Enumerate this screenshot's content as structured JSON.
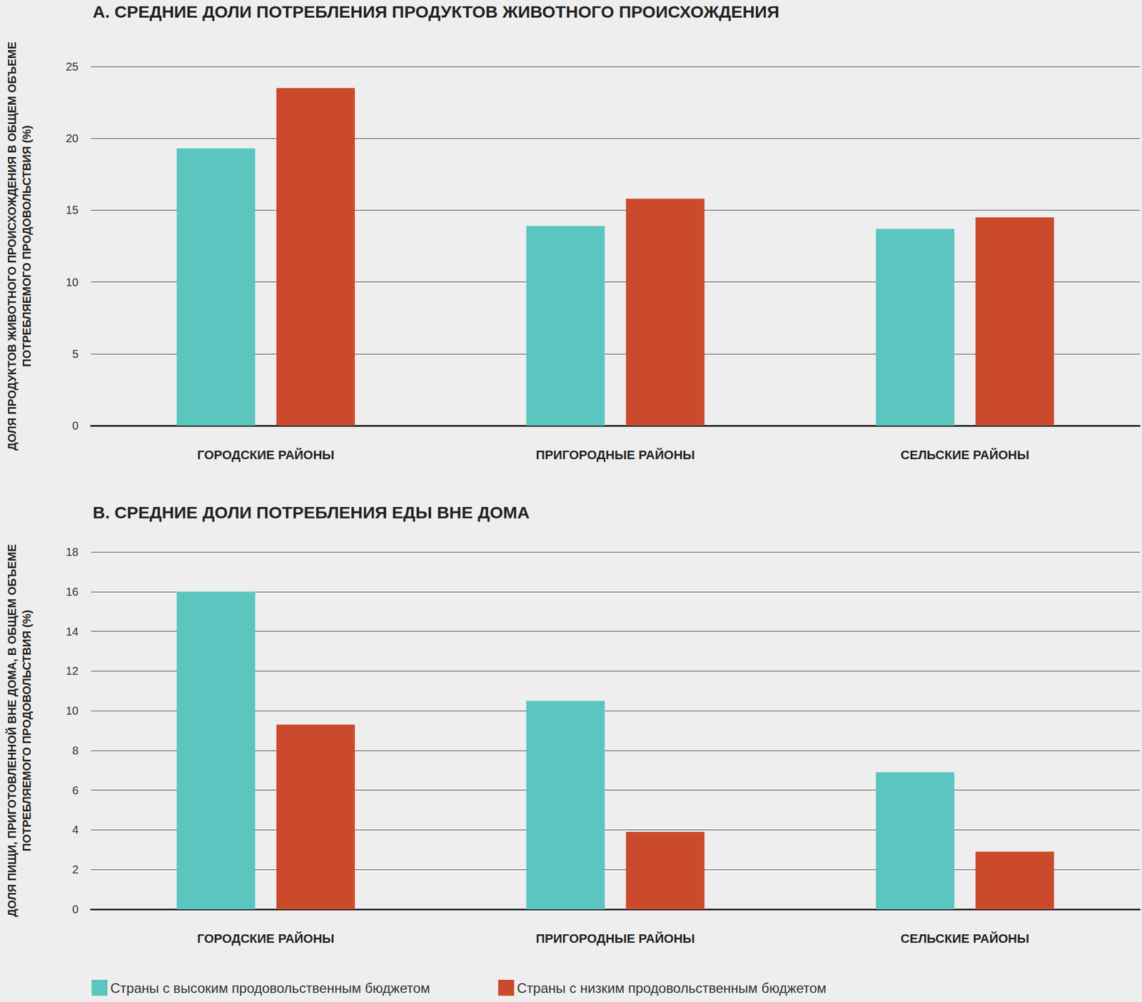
{
  "chart_data": [
    {
      "type": "bar",
      "title": "А. СРЕДНИЕ ДОЛИ ПОТРЕБЛЕНИЯ ПРОДУКТОВ ЖИВОТНОГО ПРОИСХОЖДЕНИЯ",
      "y_label": "ДОЛЯ ПРОДУКТОВ ЖИВОТНОГО ПРОИСХОЖДЕНИЯ В ОБЩЕМ ОБЪЕМЕ\nПОТРЕБЛЯЕМОГО ПРОДОВОЛЬСТВИЯ (%)",
      "categories": [
        "ГОРОДСКИЕ РАЙОНЫ",
        "ПРИГОРОДНЫЕ РАЙОНЫ",
        "СЕЛЬСКИЕ РАЙОНЫ"
      ],
      "series": [
        {
          "name": "Страны с высоким продовольственным бюджетом",
          "color": "#5bc5bf",
          "values": [
            19.3,
            13.9,
            13.7
          ]
        },
        {
          "name": "Страны с низким продовольственным бюджетом",
          "color": "#cb4a2c",
          "values": [
            23.5,
            15.8,
            14.5
          ]
        }
      ],
      "ylim": [
        0,
        25
      ],
      "yticks": [
        0,
        5,
        10,
        15,
        20,
        25
      ],
      "grid": true
    },
    {
      "type": "bar",
      "title": "В. СРЕДНИЕ ДОЛИ ПОТРЕБЛЕНИЯ ЕДЫ ВНЕ ДОМА",
      "y_label": "ДОЛЯ ПИЩИ, ПРИГОТОВЛЕННОЙ ВНЕ ДОМА, В ОБЩЕМ ОБЪЕМЕ\nПОТРЕБЛЯЕМОГО ПРОДОВОЛЬСТВИЯ (%)",
      "categories": [
        "ГОРОДСКИЕ РАЙОНЫ",
        "ПРИГОРОДНЫЕ РАЙОНЫ",
        "СЕЛЬСКИЕ РАЙОНЫ"
      ],
      "series": [
        {
          "name": "Страны с высоким продовольственным бюджетом",
          "color": "#5bc5bf",
          "values": [
            16.0,
            10.5,
            6.9
          ]
        },
        {
          "name": "Страны с низким продовольственным бюджетом",
          "color": "#cb4a2c",
          "values": [
            9.3,
            3.9,
            2.9
          ]
        }
      ],
      "ylim": [
        0,
        18
      ],
      "yticks": [
        0,
        2,
        4,
        6,
        8,
        10,
        12,
        14,
        16,
        18
      ],
      "grid": true,
      "legend": "bottom"
    }
  ]
}
